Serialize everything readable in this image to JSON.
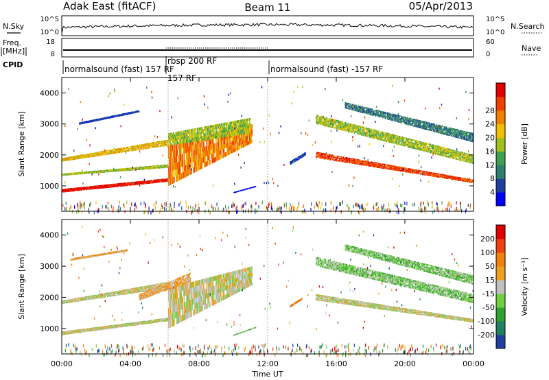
{
  "header": {
    "radar": "Adak East (fitACF)",
    "beam": "Beam 11",
    "date": "05/Apr/2013"
  },
  "top_panels": {
    "nsky_label": "N.Sky",
    "nsky_ticks": [
      "10^5",
      "10^0"
    ],
    "nsearch_label": "N.Search",
    "nsearch_ticks": [
      "10^5",
      "10^0"
    ],
    "freq_label_1": "Freq.",
    "freq_label_2": "[MHz]",
    "freq_ticks": [
      "18",
      "8"
    ],
    "nave_label": "Nave",
    "nave_ticks": [
      "60",
      "0"
    ],
    "cpid_label": "CPID",
    "cpid_segments": [
      "normalsound (fast) 157 RF",
      "rbsp 200 RF",
      "normalsound (fast) -157 RF"
    ],
    "cpid_overlap_label": "157 RF"
  },
  "chart_data": [
    {
      "type": "heatmap",
      "title": "",
      "xlabel": "Time UT",
      "ylabel": "Slant Range [km]",
      "x_ticks": [
        "00:00",
        "04:00",
        "08:00",
        "12:00",
        "16:00",
        "20:00",
        "00:00"
      ],
      "y_ticks": [
        "1000",
        "2000",
        "3000",
        "4000"
      ],
      "xlim_hours": [
        0,
        24
      ],
      "ylim_km": [
        180,
        4500
      ],
      "colorbar_label": "Power [dB]",
      "colorbar_ticks": [
        "4",
        "8",
        "12",
        "16",
        "20",
        "24",
        "28"
      ],
      "colorbar_colors": [
        "#0000ff",
        "#1f3f9f",
        "#2f7f6f",
        "#3fa04f",
        "#a0c020",
        "#f0c000",
        "#f08000",
        "#f04000",
        "#e00000"
      ],
      "bands": [
        {
          "h0": 0,
          "h1": 6.2,
          "r0": 800,
          "r1": 1150,
          "r0b": 900,
          "r1b": 1250,
          "level": 8
        },
        {
          "h0": 6.2,
          "h1": 11.1,
          "r0": 1000,
          "r1": 2400,
          "r0b": 2300,
          "r1b": 3000,
          "level": 6
        },
        {
          "h0": 0,
          "h1": 6.2,
          "r0": 1350,
          "r1": 1600,
          "r0b": 1400,
          "r1b": 1700,
          "level": 4
        },
        {
          "h0": 0,
          "h1": 6.2,
          "r0": 1800,
          "r1": 2300,
          "r0b": 1900,
          "r1b": 2500,
          "level": 5
        },
        {
          "h0": 6.2,
          "h1": 11.0,
          "r0": 2300,
          "r1": 2700,
          "r0b": 2700,
          "r1b": 3200,
          "level": 4
        },
        {
          "h0": 1.0,
          "h1": 4.5,
          "r0": 3000,
          "r1": 3400,
          "r0b": 3050,
          "r1b": 3450,
          "level": 1
        },
        {
          "h0": 10.0,
          "h1": 11.3,
          "r0": 800,
          "r1": 1000,
          "r0b": 800,
          "r1b": 1000,
          "level": 0
        },
        {
          "h0": 13.3,
          "h1": 14.2,
          "r0": 1700,
          "r1": 2000,
          "r0b": 1800,
          "r1b": 2100,
          "level": 1
        },
        {
          "h0": 14.8,
          "h1": 24,
          "r0": 1900,
          "r1": 1100,
          "r0b": 2100,
          "r1b": 1200,
          "level": 7
        },
        {
          "h0": 14.8,
          "h1": 24,
          "r0": 3000,
          "r1": 1700,
          "r0b": 3300,
          "r1b": 2000,
          "level": 4
        },
        {
          "h0": 16.5,
          "h1": 24,
          "r0": 3500,
          "r1": 2400,
          "r0b": 3700,
          "r1b": 2700,
          "level": 2
        }
      ]
    },
    {
      "type": "heatmap",
      "title": "",
      "xlabel": "Time UT",
      "ylabel": "Slant Range [km]",
      "x_ticks": [
        "00:00",
        "04:00",
        "08:00",
        "12:00",
        "16:00",
        "20:00",
        "00:00"
      ],
      "y_ticks": [
        "1000",
        "2000",
        "3000",
        "4000"
      ],
      "xlim_hours": [
        0,
        24
      ],
      "ylim_km": [
        180,
        4500
      ],
      "colorbar_label": "Velocity [m s⁻¹]",
      "colorbar_ticks": [
        "200",
        "100",
        "50",
        "15",
        "-15",
        "-50",
        "-100",
        "-200"
      ],
      "colorbar_colors": [
        "#2040a0",
        "#208060",
        "#30a030",
        "#70d040",
        "#c0c0c0",
        "#f0a020",
        "#f08010",
        "#f04010",
        "#e00000"
      ],
      "bands": [
        {
          "h0": 0,
          "h1": 6.2,
          "r0": 800,
          "r1": 1250,
          "r0b": 900,
          "r1b": 1350,
          "level": 4
        },
        {
          "h0": 6.2,
          "h1": 11.1,
          "r0": 1000,
          "r1": 2400,
          "r0b": 2300,
          "r1b": 3000,
          "level": 4
        },
        {
          "h0": 0,
          "h1": 6.2,
          "r0": 1800,
          "r1": 2300,
          "r0b": 1900,
          "r1b": 2500,
          "level": 4
        },
        {
          "h0": 4.5,
          "h1": 7.5,
          "r0": 1900,
          "r1": 2500,
          "r0b": 2100,
          "r1b": 2800,
          "level": 5
        },
        {
          "h0": 0.5,
          "h1": 3.8,
          "r0": 3200,
          "r1": 3500,
          "r0b": 3250,
          "r1b": 3550,
          "level": 5
        },
        {
          "h0": 10.0,
          "h1": 11.3,
          "r0": 800,
          "r1": 1050,
          "r0b": 800,
          "r1b": 1050,
          "level": 3
        },
        {
          "h0": 13.3,
          "h1": 14.0,
          "r0": 1700,
          "r1": 1950,
          "r0b": 1750,
          "r1b": 2000,
          "level": 6
        },
        {
          "h0": 14.8,
          "h1": 24,
          "r0": 1900,
          "r1": 1200,
          "r0b": 2100,
          "r1b": 1300,
          "level": 4
        },
        {
          "h0": 14.8,
          "h1": 24,
          "r0": 3000,
          "r1": 1800,
          "r0b": 3300,
          "r1b": 2100,
          "level": 3
        },
        {
          "h0": 16.5,
          "h1": 24,
          "r0": 3500,
          "r1": 2400,
          "r0b": 3700,
          "r1b": 2700,
          "level": 3
        }
      ]
    }
  ]
}
